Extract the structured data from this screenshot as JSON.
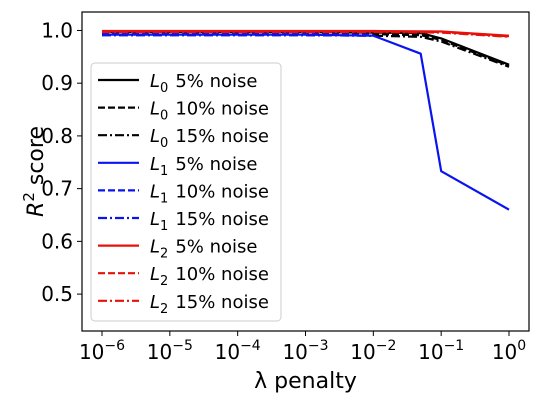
{
  "chart_data": {
    "type": "line",
    "xlabel": "λ penalty",
    "ylabel": "R² score",
    "xscale": "log",
    "xlim": [
      1e-06,
      1
    ],
    "ylim": [
      0.43,
      1.035
    ],
    "grid": false,
    "legend_position": "left",
    "x_ticks": [
      {
        "base": "10",
        "exp": "−6",
        "value": 1e-06
      },
      {
        "base": "10",
        "exp": "−5",
        "value": 1e-05
      },
      {
        "base": "10",
        "exp": "−4",
        "value": 0.0001
      },
      {
        "base": "10",
        "exp": "−3",
        "value": 0.001
      },
      {
        "base": "10",
        "exp": "−2",
        "value": 0.01
      },
      {
        "base": "10",
        "exp": "−1",
        "value": 0.1
      },
      {
        "base": "10",
        "exp": "0",
        "value": 1
      }
    ],
    "y_ticks": [
      {
        "label": "0.5",
        "value": 0.5
      },
      {
        "label": "0.6",
        "value": 0.6
      },
      {
        "label": "0.7",
        "value": 0.7
      },
      {
        "label": "0.8",
        "value": 0.8
      },
      {
        "label": "0.9",
        "value": 0.9
      },
      {
        "label": "1.0",
        "value": 1.0
      }
    ],
    "series": [
      {
        "name": "L",
        "sub": "0",
        "noise": "5% noise",
        "color": "#000000",
        "dash": "solid",
        "x": [
          1e-06,
          1e-05,
          0.0001,
          0.001,
          0.01,
          0.05,
          0.1,
          1
        ],
        "y": [
          0.997,
          0.997,
          0.997,
          0.997,
          0.996,
          0.995,
          0.985,
          0.935
        ]
      },
      {
        "name": "L",
        "sub": "0",
        "noise": "10% noise",
        "color": "#000000",
        "dash": "dashed",
        "x": [
          1e-06,
          1e-05,
          0.0001,
          0.001,
          0.01,
          0.05,
          0.1,
          1
        ],
        "y": [
          0.994,
          0.994,
          0.994,
          0.994,
          0.993,
          0.991,
          0.982,
          0.933
        ]
      },
      {
        "name": "L",
        "sub": "0",
        "noise": "15% noise",
        "color": "#000000",
        "dash": "dashdot",
        "x": [
          1e-06,
          1e-05,
          0.0001,
          0.001,
          0.01,
          0.05,
          0.1,
          1
        ],
        "y": [
          0.991,
          0.991,
          0.991,
          0.991,
          0.99,
          0.988,
          0.979,
          0.931
        ]
      },
      {
        "name": "L",
        "sub": "1",
        "noise": "5% noise",
        "color": "#0a14f0",
        "dash": "solid",
        "x": [
          1e-06,
          1e-05,
          0.0001,
          0.001,
          0.01,
          0.05,
          0.1,
          1
        ],
        "y": [
          0.992,
          0.992,
          0.992,
          0.992,
          0.99,
          0.956,
          0.733,
          0.66
        ]
      },
      {
        "name": "L",
        "sub": "1",
        "noise": "10% noise",
        "color": "#0a14f0",
        "dash": "dashed",
        "x": [
          1e-06,
          1e-05,
          0.0001,
          0.001,
          0.01
        ],
        "y": [
          0.993,
          0.993,
          0.993,
          0.993,
          0.992
        ]
      },
      {
        "name": "L",
        "sub": "1",
        "noise": "15% noise",
        "color": "#0a14f0",
        "dash": "dashdot",
        "x": [
          1e-06,
          1e-05,
          0.0001,
          0.001,
          0.01
        ],
        "y": [
          0.991,
          0.991,
          0.991,
          0.991,
          0.99
        ]
      },
      {
        "name": "L",
        "sub": "2",
        "noise": "5% noise",
        "color": "#e8100a",
        "dash": "solid",
        "x": [
          1e-06,
          1e-05,
          0.0001,
          0.001,
          0.01,
          0.1,
          1
        ],
        "y": [
          0.999,
          0.999,
          0.999,
          0.999,
          0.999,
          0.998,
          0.99
        ]
      },
      {
        "name": "L",
        "sub": "2",
        "noise": "10% noise",
        "color": "#e8100a",
        "dash": "dashed",
        "x": [
          1e-06,
          1e-05,
          0.0001,
          0.001,
          0.01,
          0.1,
          1
        ],
        "y": [
          0.998,
          0.998,
          0.998,
          0.998,
          0.998,
          0.997,
          0.989
        ]
      },
      {
        "name": "L",
        "sub": "2",
        "noise": "15% noise",
        "color": "#e8100a",
        "dash": "dashdot",
        "x": [
          1e-06,
          1e-05,
          0.0001,
          0.001,
          0.01,
          0.1,
          1
        ],
        "y": [
          0.997,
          0.997,
          0.997,
          0.997,
          0.997,
          0.996,
          0.988
        ]
      }
    ]
  }
}
